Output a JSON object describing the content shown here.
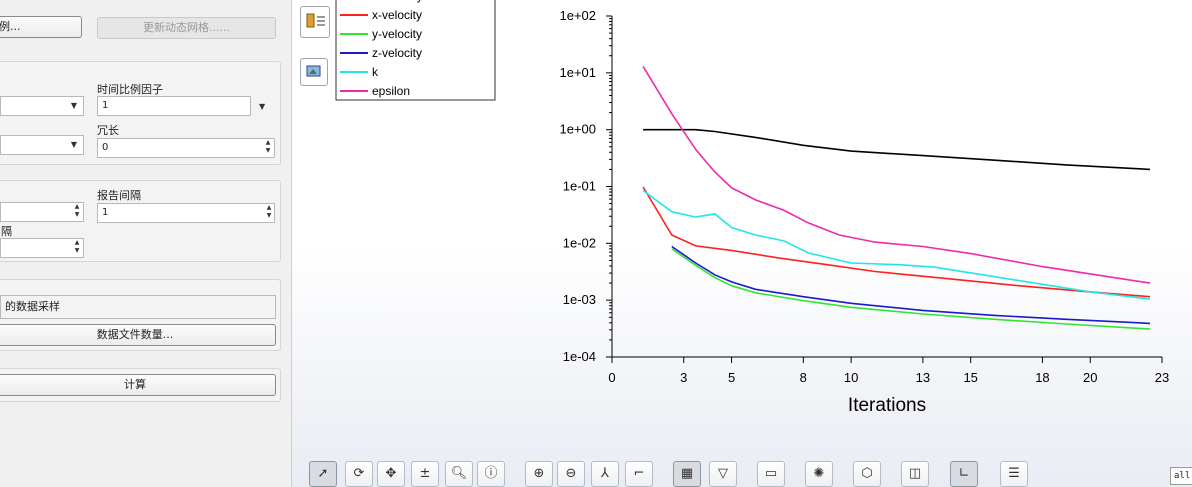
{
  "left": {
    "btn_scale": "例...",
    "btn_update_dynamic_mesh": "更新动态网格......",
    "time_scale_factor_label": "时间比例因子",
    "time_scale_factor_value": "1",
    "verbosity_label": "冗长",
    "verbosity_value": "0",
    "report_interval_label": "报告间隔",
    "report_interval_value": "1",
    "interval_label_partial": "隔",
    "data_sampling_label": "的数据采样",
    "data_file_quantity_button": "数据文件数量...",
    "calculate_button": "计算"
  },
  "residual_legend": {
    "entries": [
      {
        "name": "continuity",
        "color": "#000000"
      },
      {
        "name": "x-velocity",
        "color": "#ff2020"
      },
      {
        "name": "y-velocity",
        "color": "#33e533"
      },
      {
        "name": "z-velocity",
        "color": "#1a1acc"
      },
      {
        "name": "k",
        "color": "#22e6e6"
      },
      {
        "name": "epsilon",
        "color": "#ee2aa8"
      }
    ]
  },
  "chart_data": {
    "type": "line",
    "xlabel": "Iterations",
    "ylabel": "",
    "ylog": true,
    "xlim": [
      0,
      23
    ],
    "ylim": [
      0.0001,
      100
    ],
    "x_ticks": [
      "0",
      "3",
      "5",
      "8",
      "10",
      "13",
      "15",
      "18",
      "20",
      "23"
    ],
    "x_tick_values": [
      0,
      3,
      5,
      8,
      10,
      13,
      15,
      18,
      20,
      23
    ],
    "y_ticks": [
      "1e+02",
      "1e+01",
      "1e+00",
      "1e-01",
      "1e-02",
      "1e-03",
      "1e-04"
    ],
    "y_tick_values": [
      100,
      10,
      1,
      0.1,
      0.01,
      0.001,
      0.0001
    ],
    "series": [
      {
        "name": "continuity",
        "color": "#000000",
        "points": [
          [
            1.3,
            1.0
          ],
          [
            2.5,
            1.0
          ],
          [
            3.5,
            1.0
          ],
          [
            4.3,
            0.93
          ],
          [
            6,
            0.73
          ],
          [
            8,
            0.53
          ],
          [
            10,
            0.42
          ],
          [
            13,
            0.35
          ],
          [
            16,
            0.29
          ],
          [
            19,
            0.24
          ],
          [
            22.5,
            0.2
          ]
        ]
      },
      {
        "name": "x-velocity",
        "color": "#ff2020",
        "points": [
          [
            1.3,
            0.098
          ],
          [
            2.5,
            0.014
          ],
          [
            3.5,
            0.009
          ],
          [
            5,
            0.0075
          ],
          [
            7,
            0.0055
          ],
          [
            9,
            0.0042
          ],
          [
            11,
            0.0032
          ],
          [
            14,
            0.0024
          ],
          [
            17,
            0.0018
          ],
          [
            20,
            0.0014
          ],
          [
            22.5,
            0.00115
          ]
        ]
      },
      {
        "name": "y-velocity",
        "color": "#33e533",
        "points": [
          [
            2.5,
            0.008
          ],
          [
            3.5,
            0.0041
          ],
          [
            4.3,
            0.0025
          ],
          [
            5,
            0.0018
          ],
          [
            6,
            0.00135
          ],
          [
            8,
            0.00098
          ],
          [
            10,
            0.00075
          ],
          [
            13,
            0.00057
          ],
          [
            16,
            0.00046
          ],
          [
            19,
            0.00038
          ],
          [
            22.5,
            0.00031
          ]
        ]
      },
      {
        "name": "z-velocity",
        "color": "#1a1acc",
        "points": [
          [
            2.5,
            0.0088
          ],
          [
            3.5,
            0.0045
          ],
          [
            4.3,
            0.0028
          ],
          [
            5,
            0.0021
          ],
          [
            6,
            0.00155
          ],
          [
            8,
            0.00115
          ],
          [
            10,
            0.00088
          ],
          [
            13,
            0.00066
          ],
          [
            16,
            0.00054
          ],
          [
            19,
            0.00046
          ],
          [
            22.5,
            0.00039
          ]
        ]
      },
      {
        "name": "k",
        "color": "#22e6e6",
        "points": [
          [
            1.3,
            0.085
          ],
          [
            2.5,
            0.036
          ],
          [
            3.5,
            0.029
          ],
          [
            4.3,
            0.033
          ],
          [
            5,
            0.019
          ],
          [
            6,
            0.014
          ],
          [
            7.2,
            0.011
          ],
          [
            8.2,
            0.0068
          ],
          [
            10,
            0.0045
          ],
          [
            12,
            0.0042
          ],
          [
            13.5,
            0.0038
          ],
          [
            15.5,
            0.0028
          ],
          [
            18,
            0.0019
          ],
          [
            20,
            0.0014
          ],
          [
            22.5,
            0.00105
          ]
        ]
      },
      {
        "name": "epsilon",
        "color": "#ee2aa8",
        "points": [
          [
            1.3,
            13
          ],
          [
            2.5,
            1.9
          ],
          [
            3.5,
            0.45
          ],
          [
            4.3,
            0.18
          ],
          [
            5,
            0.095
          ],
          [
            6,
            0.058
          ],
          [
            7.2,
            0.038
          ],
          [
            8.2,
            0.023
          ],
          [
            9.5,
            0.014
          ],
          [
            11,
            0.0105
          ],
          [
            13,
            0.0088
          ],
          [
            15,
            0.0066
          ],
          [
            18,
            0.0039
          ],
          [
            20,
            0.0029
          ],
          [
            22.5,
            0.002
          ]
        ]
      }
    ]
  },
  "toolbar_filter": "all",
  "icons": [
    "select-arrow-icon",
    "rotate-icon",
    "pan-icon",
    "zoom-in-out-icon",
    "zoom-icon",
    "probe-info-icon",
    "zoom-to-fit-icon",
    "zoom-out-icon",
    "axes-orient-icon",
    "ruler-icon",
    "mesh-display-icon",
    "view-options-icon",
    "slider-icon",
    "lighting-icon",
    "cube-view-icon",
    "layers-icon",
    "axis-scale-icon",
    "report-icon"
  ]
}
